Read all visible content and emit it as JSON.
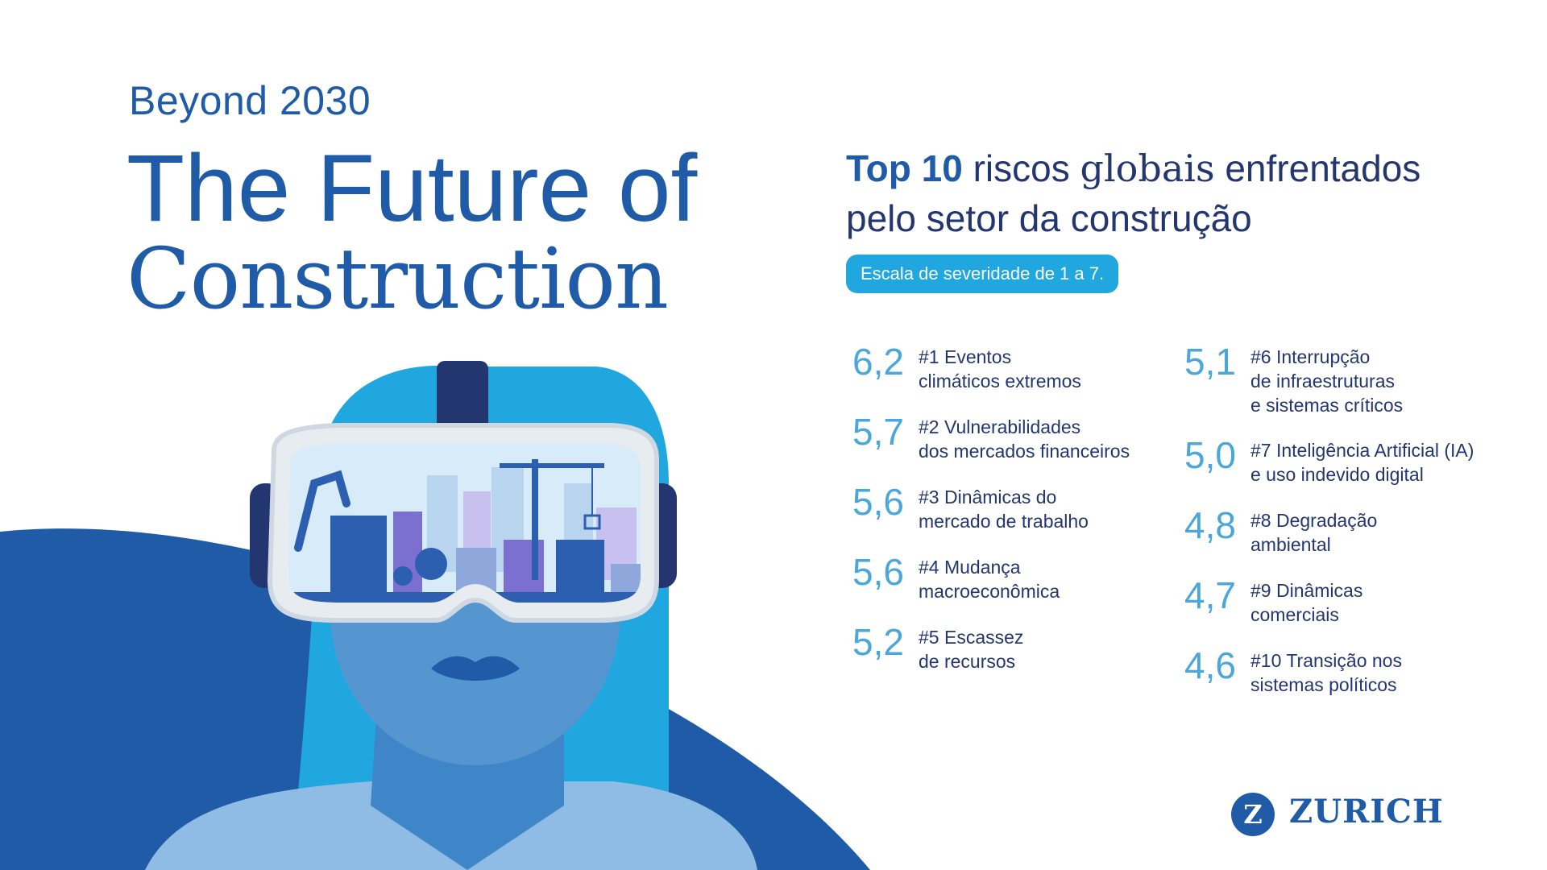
{
  "header": {
    "kicker": "Beyond 2030",
    "title_line1": "The Future of",
    "title_line2": "Construction"
  },
  "section": {
    "heading_bold": "Top 10",
    "heading_word1": " riscos ",
    "heading_serif": "globais",
    "heading_word2": " enfrentados",
    "heading_line2": "pelo setor da construção",
    "scale_note": "Escala de severidade de 1 a 7."
  },
  "risks": [
    {
      "score": "6,2",
      "label": "#1 Eventos\nclimáticos extremos"
    },
    {
      "score": "5,7",
      "label": "#2 Vulnerabilidades\ndos mercados financeiros"
    },
    {
      "score": "5,6",
      "label": "#3 Dinâmicas do\nmercado de trabalho"
    },
    {
      "score": "5,6",
      "label": "#4 Mudança\nmacroeconômica"
    },
    {
      "score": "5,2",
      "label": "#5 Escassez\nde recursos"
    },
    {
      "score": "5,1",
      "label": "#6 Interrupção\nde infraestruturas\ne sistemas críticos"
    },
    {
      "score": "5,0",
      "label": "#7 Inteligência Artificial (IA)\ne uso indevido digital"
    },
    {
      "score": "4,8",
      "label": "#8 Degradação\nambiental"
    },
    {
      "score": "4,7",
      "label": "#9 Dinâmicas\ncomerciais"
    },
    {
      "score": "4,6",
      "label": "#10 Transição nos\nsistemas políticos"
    }
  ],
  "brand": {
    "name": "ZURICH",
    "mark": "Z"
  },
  "colors": {
    "brand_blue": "#1f5ba6",
    "navy": "#23366f",
    "sky": "#21a7e0",
    "score_blue": "#4aa7db"
  },
  "illustration": {
    "icon": "vr-headset-woman-city-illustration"
  }
}
